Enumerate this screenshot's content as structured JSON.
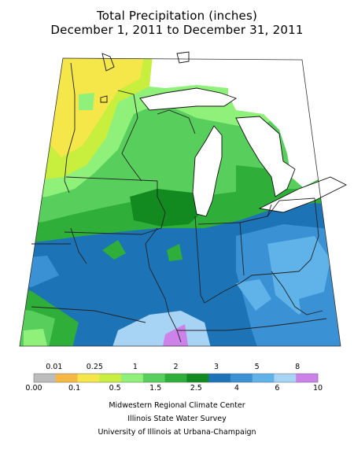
{
  "title": {
    "line1": "Total Precipitation (inches)",
    "line2": "December 1, 2011 to December 31, 2011"
  },
  "legend": {
    "bins": [
      {
        "color": "#bdbdbd"
      },
      {
        "color": "#f6b942"
      },
      {
        "color": "#f5e64a"
      },
      {
        "color": "#c8ee3e"
      },
      {
        "color": "#8ff07a"
      },
      {
        "color": "#58cf5c"
      },
      {
        "color": "#2fae3a"
      },
      {
        "color": "#128a1f"
      },
      {
        "color": "#1c74b7"
      },
      {
        "color": "#3a91d4"
      },
      {
        "color": "#5fb3e8"
      },
      {
        "color": "#a7d4f5"
      },
      {
        "color": "#cc82e8"
      }
    ],
    "top_labels": [
      "0.01",
      "0.25",
      "1",
      "2",
      "3",
      "5",
      "8"
    ],
    "bottom_labels": [
      "0.00",
      "0.1",
      "0.5",
      "1.5",
      "2.5",
      "4",
      "6",
      "10"
    ]
  },
  "credits": {
    "line1": "Midwestern Regional Climate Center",
    "line2": "Illinois State Water Survey",
    "line3": "University of Illinois at Urbana-Champaign"
  }
}
